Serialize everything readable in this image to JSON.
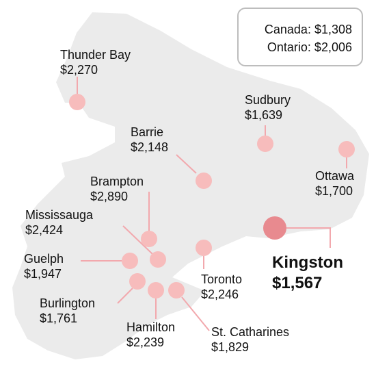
{
  "legend": {
    "canada": "Canada: $1,308",
    "ontario": "Ontario: $2,006"
  },
  "colors": {
    "land": "#ebebeb",
    "marker": "#f7bcbc",
    "marker_highlight": "#e88a8f",
    "leader_line": "#f2a8ad"
  },
  "cities": [
    {
      "id": "thunder-bay",
      "name": "Thunder Bay",
      "value": "$2,270"
    },
    {
      "id": "sudbury",
      "name": "Sudbury",
      "value": "$1,639"
    },
    {
      "id": "barrie",
      "name": "Barrie",
      "value": "$2,148"
    },
    {
      "id": "ottawa",
      "name": "Ottawa",
      "value": "$1,700"
    },
    {
      "id": "brampton",
      "name": "Brampton",
      "value": "$2,890"
    },
    {
      "id": "mississauga",
      "name": "Mississauga",
      "value": "$2,424"
    },
    {
      "id": "kingston",
      "name": "Kingston",
      "value": "$1,567",
      "highlight": true
    },
    {
      "id": "guelph",
      "name": "Guelph",
      "value": "$1,947"
    },
    {
      "id": "toronto",
      "name": "Toronto",
      "value": "$2,246"
    },
    {
      "id": "burlington",
      "name": "Burlington",
      "value": "$1,761"
    },
    {
      "id": "hamilton",
      "name": "Hamilton",
      "value": "$2,239"
    },
    {
      "id": "st-catharines",
      "name": "St. Catharines",
      "value": "$1,829"
    }
  ]
}
